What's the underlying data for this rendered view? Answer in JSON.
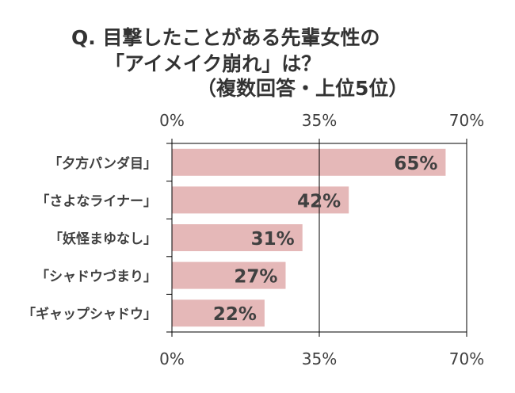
{
  "chart_data": {
    "type": "bar",
    "orientation": "horizontal",
    "title_lines": [
      "Q. 目撃したことがある先輩女性の",
      "「アイメイク崩れ」は？",
      "（複数回答・上位5位）"
    ],
    "categories": [
      "「夕方パンダ目」",
      "「さよなライナー」",
      "「妖怪まゆなし」",
      "「シャドウづまり」",
      "「ギャップシャドウ」"
    ],
    "values": [
      65,
      42,
      31,
      27,
      22
    ],
    "data_labels": [
      "65%",
      "42%",
      "31%",
      "27%",
      "22%"
    ],
    "xlim": [
      0,
      70
    ],
    "ticks": [
      0,
      35,
      70
    ],
    "tick_labels": [
      "0%",
      "35%",
      "70%"
    ],
    "tick_labels_position": "top and bottom",
    "grid": "vertical at ticks",
    "bar_color": "#e5b8b8",
    "text_color": "#404040"
  }
}
